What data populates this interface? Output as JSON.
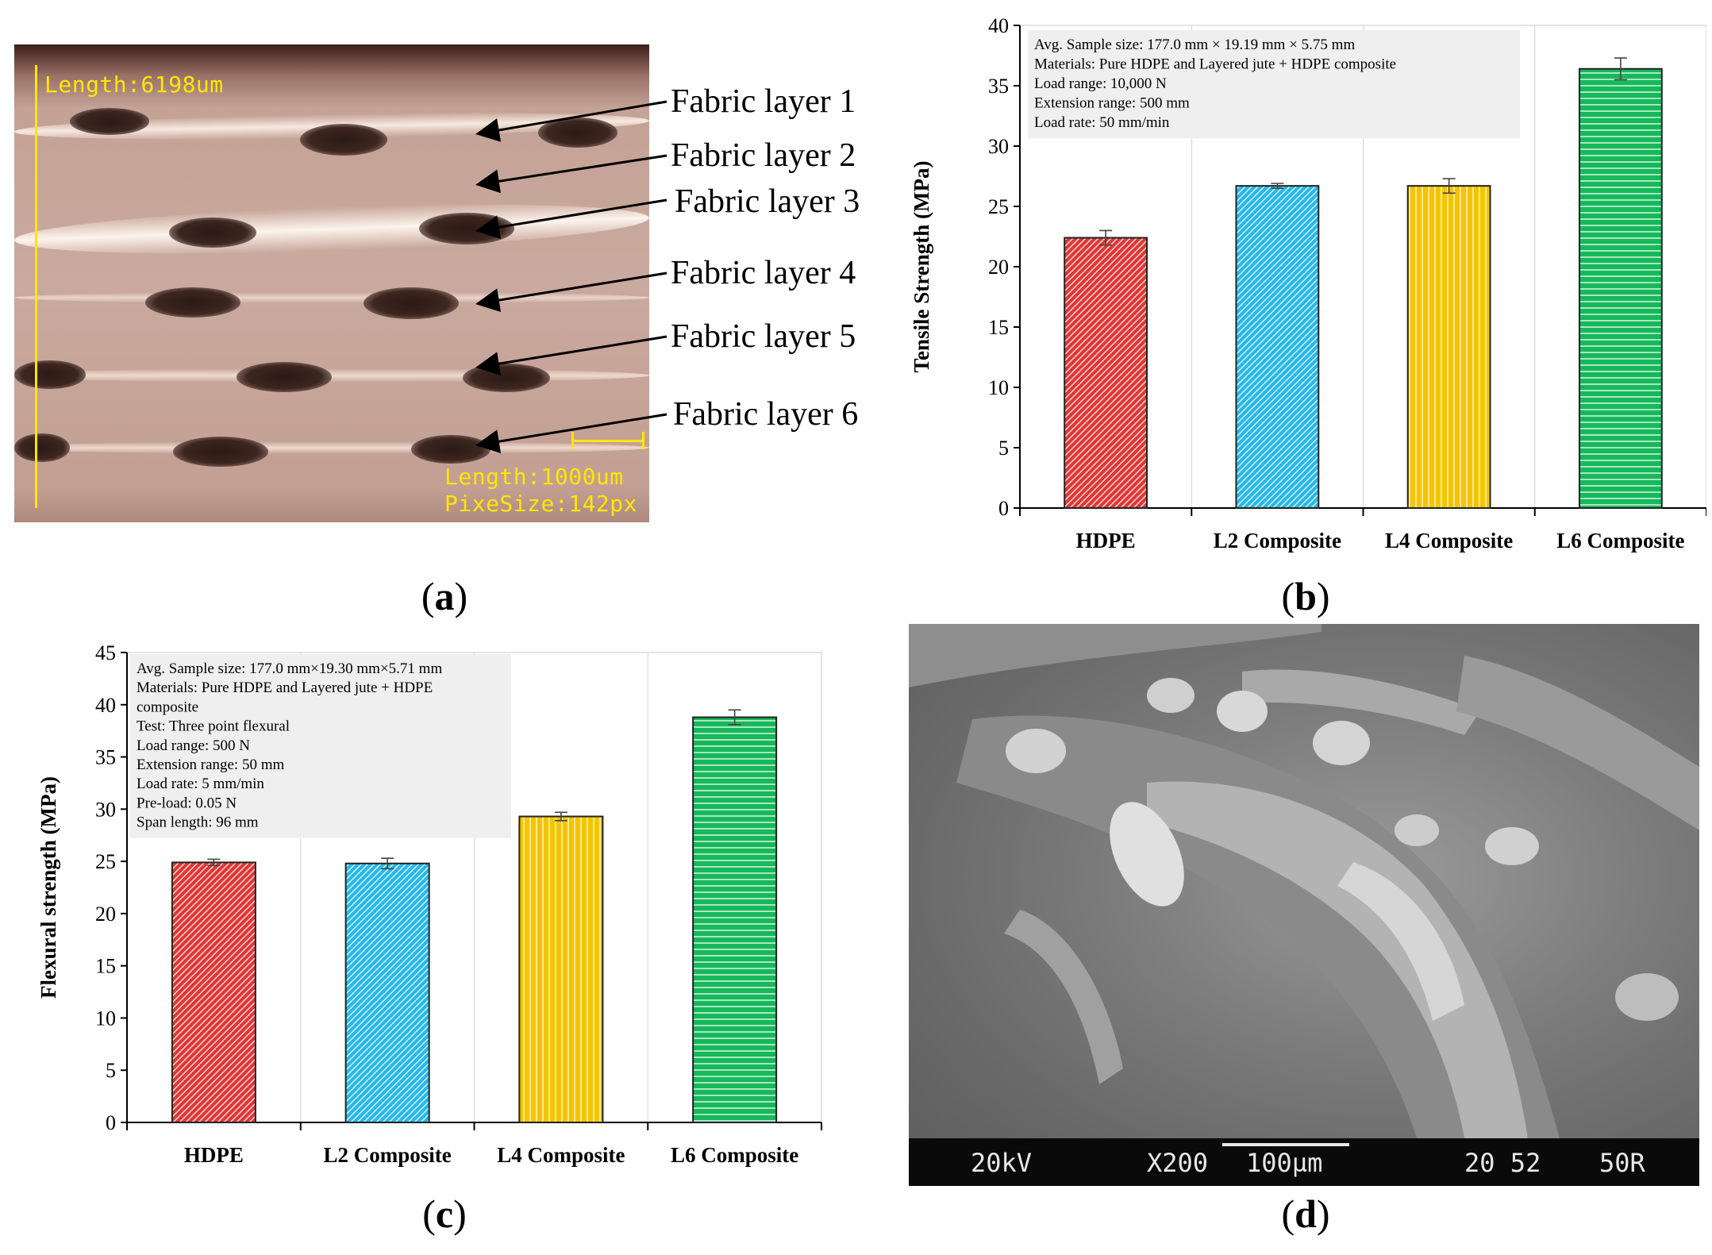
{
  "captions": {
    "a": "a",
    "b": "b",
    "c": "c",
    "d": "d"
  },
  "panel_a": {
    "length_readout": "Length:6198um",
    "scale_length": "Length:1000um",
    "pixel_size": "PixeSize:142px",
    "fabric_labels": [
      "Fabric layer 1",
      "Fabric layer 2",
      "Fabric layer 3",
      "Fabric layer 4",
      "Fabric layer 5",
      "Fabric layer 6"
    ],
    "colors": {
      "readout": "#ffe600",
      "background": "#c4a296",
      "bundles": "#2b1a15"
    }
  },
  "panel_d": {
    "voltage": "20kV",
    "magnification": "X200",
    "scale_bar": "100µm",
    "code": "20 52",
    "id": "50R"
  },
  "chart_data": [
    {
      "panel": "b",
      "type": "bar",
      "categories": [
        "HDPE",
        "L2 Composite",
        "L4 Composite",
        "L6 Composite"
      ],
      "series": [
        {
          "values": [
            22.4,
            26.7,
            26.7,
            36.4
          ],
          "errors": [
            0.6,
            0.2,
            0.6,
            0.9
          ]
        }
      ],
      "ylabel": "Tensile Strength (MPa)",
      "xlabel": "",
      "ylim": [
        0,
        40
      ],
      "yticks": [
        0,
        5,
        10,
        15,
        20,
        25,
        30,
        35,
        40
      ],
      "grid": "vertical-category-separators",
      "annotation": [
        "Avg. Sample size: 177.0 mm × 19.19 mm × 5.75 mm",
        "Materials: Pure HDPE and Layered jute + HDPE composite",
        "Load range:  10,000 N",
        "Extension range:  500  mm",
        "Load rate: 50 mm/min"
      ],
      "bar_colors": [
        "#e03535",
        "#27b8e8",
        "#f5c400",
        "#16b85a"
      ],
      "bar_patterns": [
        "diagonal",
        "diagonal",
        "vertical",
        "horizontal"
      ]
    },
    {
      "panel": "c",
      "type": "bar",
      "categories": [
        "HDPE",
        "L2 Composite",
        "L4 Composite",
        "L6 Composite"
      ],
      "series": [
        {
          "values": [
            24.9,
            24.8,
            29.3,
            38.8
          ],
          "errors": [
            0.3,
            0.5,
            0.4,
            0.7
          ]
        }
      ],
      "ylabel": "Flexural  strength (MPa)",
      "xlabel": "",
      "ylim": [
        0,
        45
      ],
      "yticks": [
        0,
        5,
        10,
        15,
        20,
        25,
        30,
        35,
        40,
        45
      ],
      "grid": "vertical-category-separators",
      "annotation": [
        "Avg. Sample size: 177.0 mm×19.30 mm×5.71 mm",
        "Materials: Pure HDPE and Layered jute + HDPE",
        "composite",
        "Test: Three point flexural",
        "Load range:  500 N",
        "Extension range:  50  mm",
        "Load rate: 5 mm/min",
        "Pre-load:  0.05 N",
        "Span length:  96 mm"
      ],
      "bar_colors": [
        "#e03535",
        "#27b8e8",
        "#f5c400",
        "#16b85a"
      ],
      "bar_patterns": [
        "diagonal",
        "diagonal",
        "vertical",
        "horizontal"
      ]
    }
  ]
}
